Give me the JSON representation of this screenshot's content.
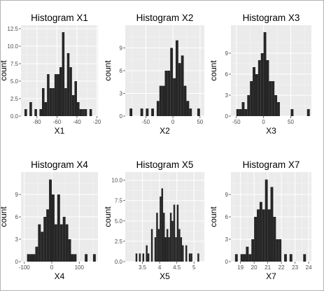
{
  "colors": {
    "panel_bg": "#ebebeb",
    "grid_major": "#ffffff",
    "grid_minor": "#f5f5f5",
    "bar": "#262626",
    "tick": "#4d4d4d"
  },
  "chart_data": [
    {
      "type": "bar",
      "title": "Histogram X1",
      "xlabel": "X1",
      "ylabel": "count",
      "xlim": [
        -96,
        -19
      ],
      "ylim": [
        0,
        13
      ],
      "xticks": [
        -80,
        -60,
        -40,
        -20
      ],
      "yticks": [
        0.0,
        2.5,
        5.0,
        7.5,
        10.0,
        12.5
      ],
      "ytick_labels": [
        "0.0",
        "2.5",
        "5.0",
        "7.5",
        "10.0",
        "12.5"
      ],
      "bin_width": 2.5,
      "bins": [
        [
          -92.5,
          1
        ],
        [
          -87.5,
          2
        ],
        [
          -82.5,
          1
        ],
        [
          -77.5,
          1
        ],
        [
          -75,
          4
        ],
        [
          -72.5,
          2
        ],
        [
          -70,
          6
        ],
        [
          -67.5,
          4
        ],
        [
          -65,
          4
        ],
        [
          -62.5,
          6
        ],
        [
          -60,
          6
        ],
        [
          -57.5,
          7
        ],
        [
          -55,
          12
        ],
        [
          -52.5,
          4
        ],
        [
          -50,
          9
        ],
        [
          -47.5,
          7
        ],
        [
          -45,
          3
        ],
        [
          -42.5,
          5
        ],
        [
          -40,
          2
        ],
        [
          -37.5,
          1
        ],
        [
          -35,
          1
        ],
        [
          -32.5,
          1
        ],
        [
          -27.5,
          1
        ]
      ]
    },
    {
      "type": "bar",
      "title": "Histogram X2",
      "xlabel": "X2",
      "ylabel": "count",
      "xlim": [
        -88,
        58
      ],
      "ylim": [
        0,
        12
      ],
      "xticks": [
        -50,
        0,
        50
      ],
      "yticks": [
        0,
        3,
        6,
        9
      ],
      "ytick_labels": [
        "0",
        "3",
        "6",
        "9"
      ],
      "bin_width": 5,
      "bins": [
        [
          -80,
          1
        ],
        [
          -60,
          1
        ],
        [
          -50,
          1
        ],
        [
          -40,
          1
        ],
        [
          -30,
          2
        ],
        [
          -25,
          4
        ],
        [
          -20,
          4
        ],
        [
          -15,
          6
        ],
        [
          -10,
          6
        ],
        [
          -5,
          9
        ],
        [
          0,
          5
        ],
        [
          5,
          10
        ],
        [
          10,
          7
        ],
        [
          15,
          8
        ],
        [
          20,
          4
        ],
        [
          25,
          2
        ],
        [
          30,
          1
        ],
        [
          45,
          1
        ]
      ]
    },
    {
      "type": "bar",
      "title": "Histogram X3",
      "xlabel": "X3",
      "ylabel": "count",
      "xlim": [
        -60,
        88
      ],
      "ylim": [
        0,
        13
      ],
      "xticks": [
        -50,
        0,
        50
      ],
      "yticks": [
        0,
        3,
        6,
        9
      ],
      "ytick_labels": [
        "0",
        "3",
        "6",
        "9"
      ],
      "bin_width": 5,
      "bins": [
        [
          -50,
          1
        ],
        [
          -45,
          1
        ],
        [
          -40,
          2
        ],
        [
          -35,
          1
        ],
        [
          -30,
          3
        ],
        [
          -25,
          5
        ],
        [
          -20,
          7
        ],
        [
          -15,
          6
        ],
        [
          -10,
          8
        ],
        [
          -5,
          9
        ],
        [
          0,
          12
        ],
        [
          5,
          8
        ],
        [
          10,
          5
        ],
        [
          15,
          5
        ],
        [
          20,
          3
        ],
        [
          25,
          2
        ],
        [
          50,
          1
        ],
        [
          80,
          1
        ]
      ]
    },
    {
      "type": "bar",
      "title": "Histogram X4",
      "xlabel": "X4",
      "ylabel": "count",
      "xlim": [
        -112,
        168
      ],
      "ylim": [
        0,
        12
      ],
      "xticks": [
        -100,
        0,
        100
      ],
      "yticks": [
        0,
        3,
        6,
        9
      ],
      "ytick_labels": [
        "0",
        "3",
        "6",
        "9"
      ],
      "bin_width": 10,
      "bins": [
        [
          -90,
          1
        ],
        [
          -80,
          1
        ],
        [
          -70,
          1
        ],
        [
          -60,
          2
        ],
        [
          -50,
          5
        ],
        [
          -40,
          4
        ],
        [
          -30,
          6
        ],
        [
          -20,
          7
        ],
        [
          -10,
          11
        ],
        [
          0,
          9
        ],
        [
          10,
          5
        ],
        [
          20,
          9
        ],
        [
          30,
          5
        ],
        [
          40,
          6
        ],
        [
          50,
          5
        ],
        [
          60,
          3
        ],
        [
          70,
          1
        ],
        [
          80,
          1
        ],
        [
          120,
          1
        ],
        [
          150,
          1
        ]
      ]
    },
    {
      "type": "bar",
      "title": "Histogram X5",
      "xlabel": "X5",
      "ylabel": "count",
      "xlim": [
        3.0,
        5.3
      ],
      "ylim": [
        0,
        11
      ],
      "xticks": [
        3.5,
        4.0,
        4.5,
        5.0
      ],
      "yticks": [
        0.0,
        2.5,
        5.0,
        7.5,
        10.0
      ],
      "ytick_labels": [
        "0.0",
        "2.5",
        "5.0",
        "7.5",
        "10.0"
      ],
      "bin_width": 0.05,
      "bins": [
        [
          3.3,
          1
        ],
        [
          3.4,
          1
        ],
        [
          3.5,
          1
        ],
        [
          3.6,
          2
        ],
        [
          3.65,
          1
        ],
        [
          3.75,
          4
        ],
        [
          3.85,
          3
        ],
        [
          3.9,
          6
        ],
        [
          3.95,
          4
        ],
        [
          4.0,
          8
        ],
        [
          4.05,
          9
        ],
        [
          4.1,
          6
        ],
        [
          4.15,
          3
        ],
        [
          4.2,
          4
        ],
        [
          4.25,
          3
        ],
        [
          4.3,
          6
        ],
        [
          4.35,
          5
        ],
        [
          4.4,
          7
        ],
        [
          4.45,
          3
        ],
        [
          4.5,
          7
        ],
        [
          4.55,
          4
        ],
        [
          4.6,
          3
        ],
        [
          4.65,
          2
        ],
        [
          4.75,
          2
        ],
        [
          4.85,
          1
        ],
        [
          4.9,
          1
        ],
        [
          5.1,
          1
        ]
      ]
    },
    {
      "type": "bar",
      "title": "Histogram X7",
      "xlabel": "X7",
      "ylabel": "count",
      "xlim": [
        18.3,
        24.2
      ],
      "ylim": [
        0,
        12
      ],
      "xticks": [
        19,
        20,
        21,
        22,
        23,
        24
      ],
      "yticks": [
        0,
        3,
        6,
        9
      ],
      "ytick_labels": [
        "0",
        "3",
        "6",
        "9"
      ],
      "bin_width": 0.2,
      "bins": [
        [
          18.6,
          1
        ],
        [
          19.0,
          1
        ],
        [
          19.2,
          1
        ],
        [
          19.4,
          2
        ],
        [
          19.6,
          1
        ],
        [
          19.8,
          3
        ],
        [
          20.0,
          6
        ],
        [
          20.2,
          7
        ],
        [
          20.4,
          8
        ],
        [
          20.6,
          7
        ],
        [
          20.8,
          11
        ],
        [
          21.0,
          7
        ],
        [
          21.2,
          10
        ],
        [
          21.4,
          6
        ],
        [
          21.6,
          3
        ],
        [
          21.8,
          3
        ],
        [
          22.2,
          1
        ],
        [
          22.6,
          1
        ],
        [
          23.6,
          1
        ]
      ]
    }
  ]
}
